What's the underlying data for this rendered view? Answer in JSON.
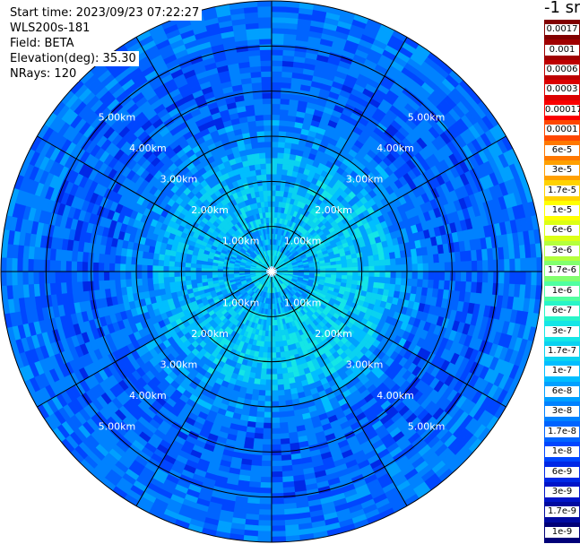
{
  "info": {
    "start_time": "Start time: 2023/09/23 07:22:27",
    "device": "WLS200s-181",
    "field": "Field: BETA",
    "elevation": "Elevation(deg): 35.30",
    "nrays": "NRays: 120"
  },
  "colorbar": {
    "unit": "-1 sr",
    "entries": [
      {
        "label": "0.0017",
        "color": "#820000"
      },
      {
        "label": "0.001",
        "color": "#a00000"
      },
      {
        "label": "0.0006",
        "color": "#be0000"
      },
      {
        "label": "0.0003",
        "color": "#dc0000"
      },
      {
        "label": "0.00017",
        "color": "#fa0000"
      },
      {
        "label": "0.0001",
        "color": "#ff4600"
      },
      {
        "label": "6e-5",
        "color": "#ff7800"
      },
      {
        "label": "3e-5",
        "color": "#ffa000"
      },
      {
        "label": "1.7e-5",
        "color": "#ffd200"
      },
      {
        "label": "1e-5",
        "color": "#ffff00"
      },
      {
        "label": "6e-6",
        "color": "#dcff14"
      },
      {
        "label": "3e-6",
        "color": "#b4ff3c"
      },
      {
        "label": "1.7e-6",
        "color": "#82ff6e"
      },
      {
        "label": "1e-6",
        "color": "#50ffa0"
      },
      {
        "label": "6e-7",
        "color": "#28f5c8"
      },
      {
        "label": "3e-7",
        "color": "#14e6e6"
      },
      {
        "label": "1.7e-7",
        "color": "#0ad2f0"
      },
      {
        "label": "1e-7",
        "color": "#00beff"
      },
      {
        "label": "6e-8",
        "color": "#00a0ff"
      },
      {
        "label": "3e-8",
        "color": "#0082ff"
      },
      {
        "label": "1.7e-8",
        "color": "#0064ff"
      },
      {
        "label": "1e-8",
        "color": "#0046ff"
      },
      {
        "label": "6e-9",
        "color": "#0028e6"
      },
      {
        "label": "3e-9",
        "color": "#0014c8"
      },
      {
        "label": "1.7e-9",
        "color": "#000aa0"
      },
      {
        "label": "1e-9",
        "color": "#000078"
      }
    ]
  },
  "chart_data": {
    "type": "heatmap",
    "projection": "polar",
    "field": "BETA",
    "units": "-1 sr",
    "n_rays": 120,
    "n_gates": 50,
    "range_unit": "km",
    "max_range_km": 6.0,
    "range_rings_km": [
      1,
      2,
      3,
      4,
      5
    ],
    "range_ring_labels": [
      "1.00km",
      "2.00km",
      "3.00km",
      "4.00km",
      "5.00km"
    ],
    "spoke_angles_deg": [
      0,
      30,
      60,
      90,
      120,
      150
    ],
    "color_scale": "log",
    "color_range": [
      1e-09,
      0.0017
    ],
    "description_of_values": {
      "0.0-0.5km": 2.5e-07,
      "0.5-1.0km": 1e-07,
      "1.0-2.5km": 2.5e-07,
      "2.5-3.5km": 6e-08,
      "3.5-5.0km": 2e-08,
      "5.0-6.0km": 3e-08
    }
  }
}
